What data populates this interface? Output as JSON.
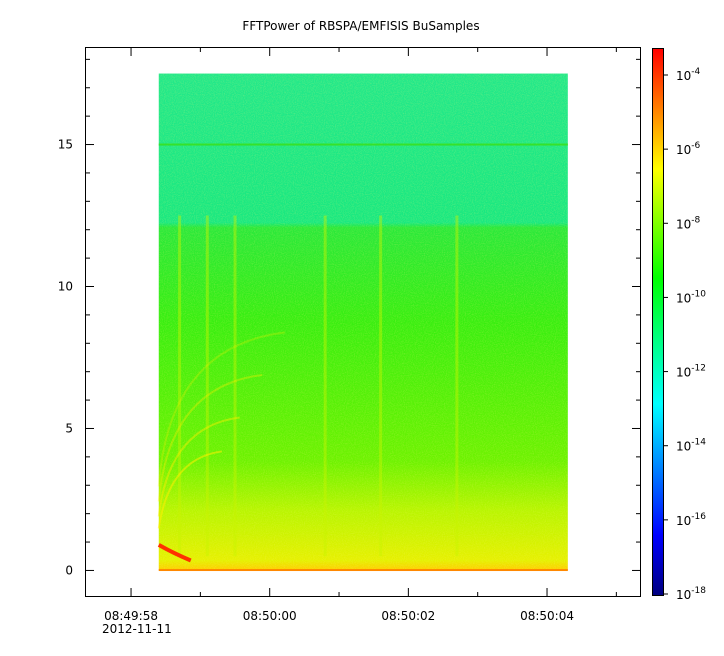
{
  "chart_data": {
    "type": "heatmap",
    "title": "FFTPower of RBSPA/EMFISIS  BuSamples",
    "xlabel": "",
    "ylabel": "",
    "x_ticks": [
      {
        "label": "08:49:58",
        "t": -2
      },
      {
        "label": "08:50:00",
        "t": 0
      },
      {
        "label": "08:50:02",
        "t": 2
      },
      {
        "label": "08:50:04",
        "t": 4
      }
    ],
    "x_date_label": "2012-11-11",
    "x_range_label": [
      "08:49:57.2",
      "08:50:05.2"
    ],
    "y_ticks": [
      0,
      5,
      10,
      15
    ],
    "ylim": [
      -0.9,
      18.4
    ],
    "data_extent": {
      "y": [
        0,
        17.5
      ],
      "t_start_label": "08:49:58.4",
      "t_end_label": "08:50:04.3"
    },
    "colorbar": {
      "scale": "log",
      "range": [
        1e-18,
        0.0001
      ],
      "ticks": [
        {
          "base": "10",
          "exp": "-4"
        },
        {
          "base": "10",
          "exp": "-6"
        },
        {
          "base": "10",
          "exp": "-8"
        },
        {
          "base": "10",
          "exp": "-10"
        },
        {
          "base": "10",
          "exp": "-12"
        },
        {
          "base": "10",
          "exp": "-14"
        },
        {
          "base": "10",
          "exp": "-16"
        },
        {
          "base": "10",
          "exp": "-18"
        }
      ],
      "colormap": [
        "#00007f",
        "#0000ff",
        "#007fff",
        "#00ffff",
        "#00ff7f",
        "#00ff00",
        "#7fff00",
        "#ffff00",
        "#ff7f00",
        "#ff0000"
      ]
    },
    "features": {
      "background_low_freq_power": "~1e-9 (yellow-green)",
      "background_mid_freq_power": "~1e-10 (green)",
      "background_high_freq_power": "~1e-12 (cyan-green), above ~12.2",
      "horizontal_line_at": 15.0,
      "strong_low_band_power": "~1e-5 (red) near 0.3–0.9",
      "vertical_streaks_seconds_offset": [
        -1.3,
        -0.9,
        -0.5,
        0.8,
        1.6,
        2.7
      ]
    }
  }
}
